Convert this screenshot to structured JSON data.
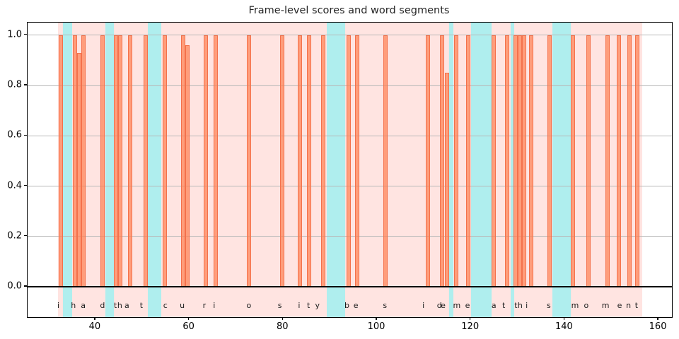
{
  "title": "Frame-level scores and word segments",
  "chart_data": {
    "type": "bar",
    "title": "Frame-level scores and word segments",
    "xlabel": "",
    "ylabel": "",
    "xlim": [
      25.54,
      162.85
    ],
    "ylim": [
      -0.1208,
      1.05
    ],
    "x_ticks": [
      40,
      60,
      80,
      100,
      120,
      140,
      160
    ],
    "y_ticks": [
      "0.0",
      "0.2",
      "0.4",
      "0.6",
      "0.8",
      "1.0"
    ],
    "grid": "horizontal",
    "legend": "none",
    "bar_width": 0.9,
    "bars": [
      [
        32.65,
        1.0
      ],
      [
        35.65,
        1.0
      ],
      [
        36.55,
        0.93
      ],
      [
        37.45,
        1.0
      ],
      [
        41.55,
        1.0
      ],
      [
        44.45,
        1.0
      ],
      [
        45.35,
        1.0
      ],
      [
        47.45,
        1.0
      ],
      [
        50.75,
        1.0
      ],
      [
        54.75,
        1.0
      ],
      [
        58.65,
        1.0
      ],
      [
        59.55,
        0.96
      ],
      [
        63.55,
        1.0
      ],
      [
        65.65,
        1.0
      ],
      [
        72.65,
        1.0
      ],
      [
        79.75,
        1.0
      ],
      [
        83.55,
        1.0
      ],
      [
        85.55,
        1.0
      ],
      [
        88.55,
        1.0
      ],
      [
        93.95,
        1.0
      ],
      [
        95.85,
        1.0
      ],
      [
        101.75,
        1.0
      ],
      [
        110.85,
        1.0
      ],
      [
        113.85,
        1.0
      ],
      [
        114.9,
        0.85
      ],
      [
        116.85,
        1.0
      ],
      [
        119.5,
        1.0
      ],
      [
        124.9,
        1.0
      ],
      [
        127.75,
        1.0
      ],
      [
        129.6,
        1.0
      ],
      [
        130.5,
        1.0
      ],
      [
        131.4,
        1.0
      ],
      [
        132.9,
        1.0
      ],
      [
        136.75,
        1.0
      ],
      [
        141.8,
        1.0
      ],
      [
        145.05,
        1.0
      ],
      [
        149.1,
        1.0
      ],
      [
        151.6,
        1.0
      ],
      [
        153.8,
        1.0
      ],
      [
        155.5,
        1.0
      ]
    ],
    "word_region_span": [
      32.0,
      156.5
    ],
    "gap_spans": [
      [
        33.1,
        35.0
      ],
      [
        42.1,
        44.0
      ],
      [
        51.2,
        54.0
      ],
      [
        89.3,
        93.2
      ],
      [
        115.35,
        116.25
      ],
      [
        120.0,
        124.35
      ],
      [
        128.5,
        129.3
      ],
      [
        137.4,
        141.3
      ]
    ],
    "letters_y": -0.076,
    "letters": [
      [
        "i",
        32.1
      ],
      [
        "h",
        35.3
      ],
      [
        "a",
        37.4
      ],
      [
        "d",
        41.5
      ],
      [
        "t",
        44.25
      ],
      [
        "h",
        45.2
      ],
      [
        "a",
        46.7
      ],
      [
        "t",
        49.8
      ],
      [
        "c",
        54.9
      ],
      [
        "u",
        58.5
      ],
      [
        "r",
        63.2
      ],
      [
        "i",
        65.3
      ],
      [
        "o",
        72.7
      ],
      [
        "s",
        79.3
      ],
      [
        "i",
        83.4
      ],
      [
        "t",
        85.4
      ],
      [
        "y",
        87.3
      ],
      [
        "b",
        93.6
      ],
      [
        "e",
        95.5
      ],
      [
        "s",
        101.7
      ],
      [
        "i",
        109.9
      ],
      [
        "d",
        113.3
      ],
      [
        "e",
        114.1
      ],
      [
        "m",
        117.0
      ],
      [
        "e",
        119.3
      ],
      [
        "a",
        124.9
      ],
      [
        "t",
        127.0
      ],
      [
        "t",
        129.6
      ],
      [
        "h",
        130.5
      ],
      [
        "i",
        131.9
      ],
      [
        "s",
        136.6
      ],
      [
        "m",
        142.2
      ],
      [
        "o",
        144.6
      ],
      [
        "m",
        148.7
      ],
      [
        "e",
        151.7
      ],
      [
        "n",
        153.6
      ],
      [
        "t",
        155.3
      ]
    ],
    "transcript": "i had that curiosity beside me at this moment",
    "colors": {
      "bar_fill": "rgba(255,127,80,0.7)",
      "bar_edge": "#f4714b",
      "word_region": "#ffe4e1",
      "gap_span": "#afeeee",
      "gridline": "#b8b8b8",
      "zero_line": "#000000",
      "text": "#1a1a1a"
    }
  }
}
